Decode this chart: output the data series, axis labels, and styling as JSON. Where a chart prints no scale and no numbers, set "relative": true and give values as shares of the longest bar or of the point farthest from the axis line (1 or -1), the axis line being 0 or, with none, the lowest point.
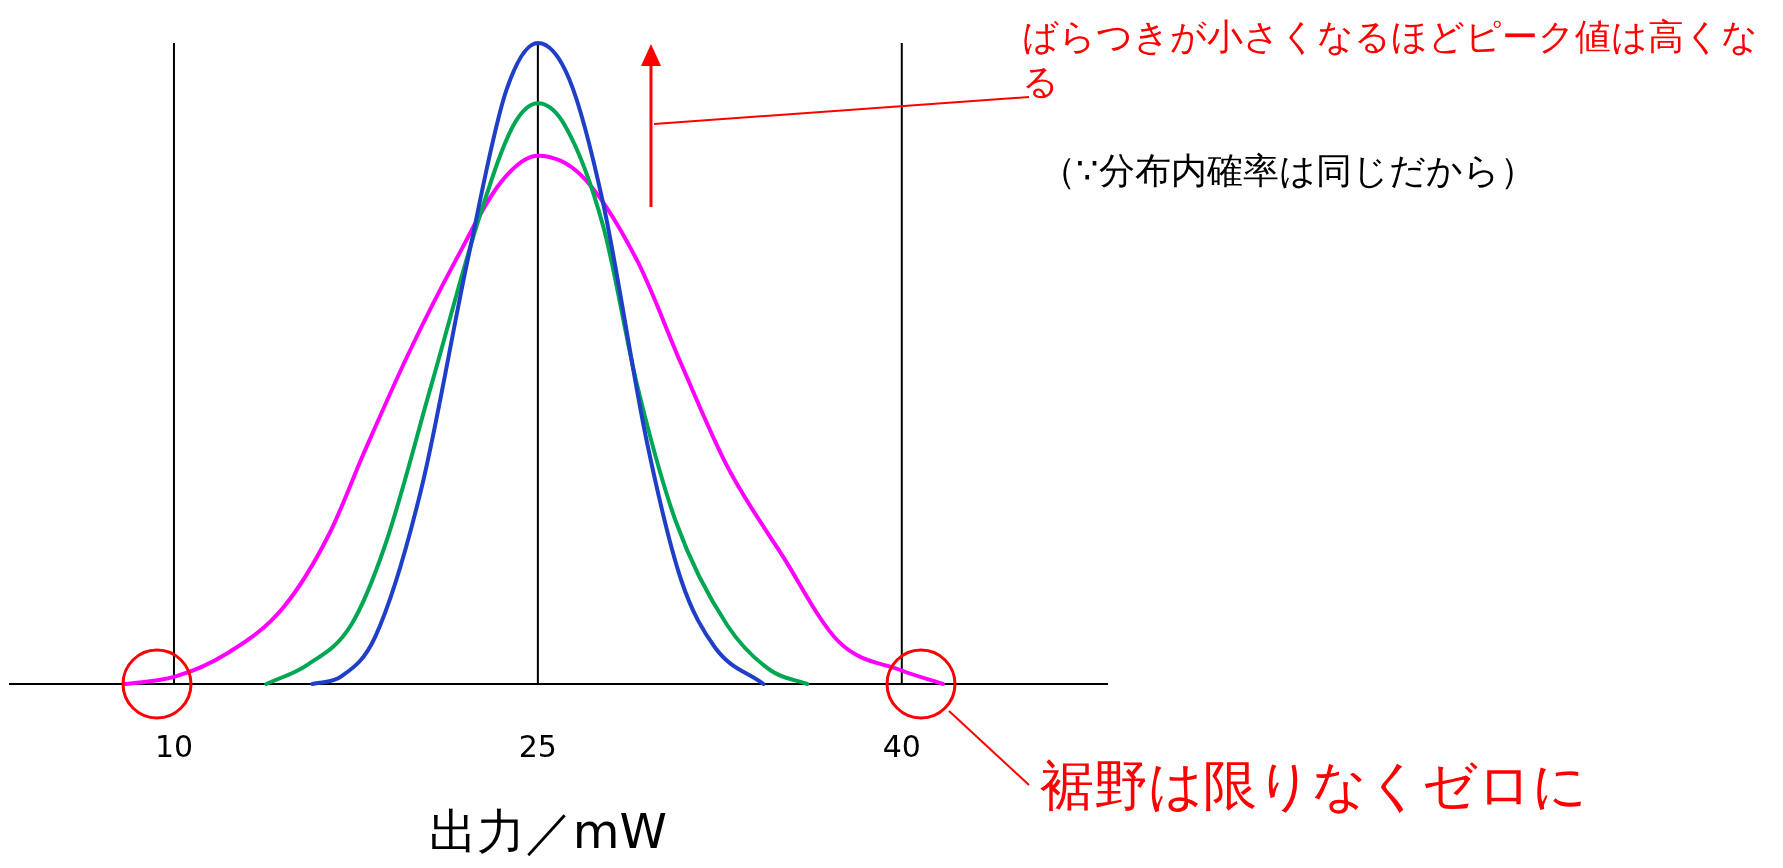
{
  "chart_data": {
    "type": "line",
    "relative": true,
    "xlabel": "出力／mW",
    "xlim": [
      3.2,
      48.5
    ],
    "xticks": [
      10,
      25,
      40
    ],
    "series": [
      {
        "color": "#ff00ff",
        "x": [
          8.0,
          10,
          12.2,
          14.5,
          16.4,
          17.8,
          19.7,
          21.6,
          23.5,
          25,
          26.8,
          29.1,
          30.9,
          32.8,
          35.1,
          37.4,
          40,
          41.7
        ],
        "values": [
          0,
          0.011,
          0.048,
          0.119,
          0.234,
          0.358,
          0.518,
          0.66,
          0.784,
          0.824,
          0.793,
          0.66,
          0.5,
          0.34,
          0.199,
          0.066,
          0.021,
          0
        ]
      },
      {
        "color": "#00a651",
        "x": [
          13.8,
          15.5,
          17.3,
          18.7,
          20.6,
          22.6,
          24.0,
          25,
          26.1,
          27.7,
          29.1,
          30.7,
          32.8,
          34.6,
          36.1
        ],
        "values": [
          0,
          0.03,
          0.092,
          0.216,
          0.465,
          0.73,
          0.872,
          0.906,
          0.872,
          0.713,
          0.465,
          0.252,
          0.092,
          0.021,
          0
        ]
      },
      {
        "color": "#1f3fc8",
        "x": [
          15.7,
          16.9,
          18.3,
          20.2,
          22.1,
          23.7,
          25,
          26.3,
          27.7,
          29.5,
          30.9,
          32.3,
          34.3
        ],
        "values": [
          0,
          0.012,
          0.074,
          0.305,
          0.66,
          0.926,
          1,
          0.943,
          0.748,
          0.376,
          0.163,
          0.057,
          0
        ]
      }
    ],
    "ref_lines": [
      {
        "axis": "x",
        "value": 10,
        "color": "#000000"
      },
      {
        "axis": "x",
        "value": 25,
        "color": "#000000"
      },
      {
        "axis": "x",
        "value": 40,
        "color": "#000000"
      }
    ],
    "annotations": [
      "ばらつきが小さくなるほどピーク値は高くなる",
      "（∵分布内確率は同じだから）",
      "裾野は限りなくゼロに"
    ]
  }
}
